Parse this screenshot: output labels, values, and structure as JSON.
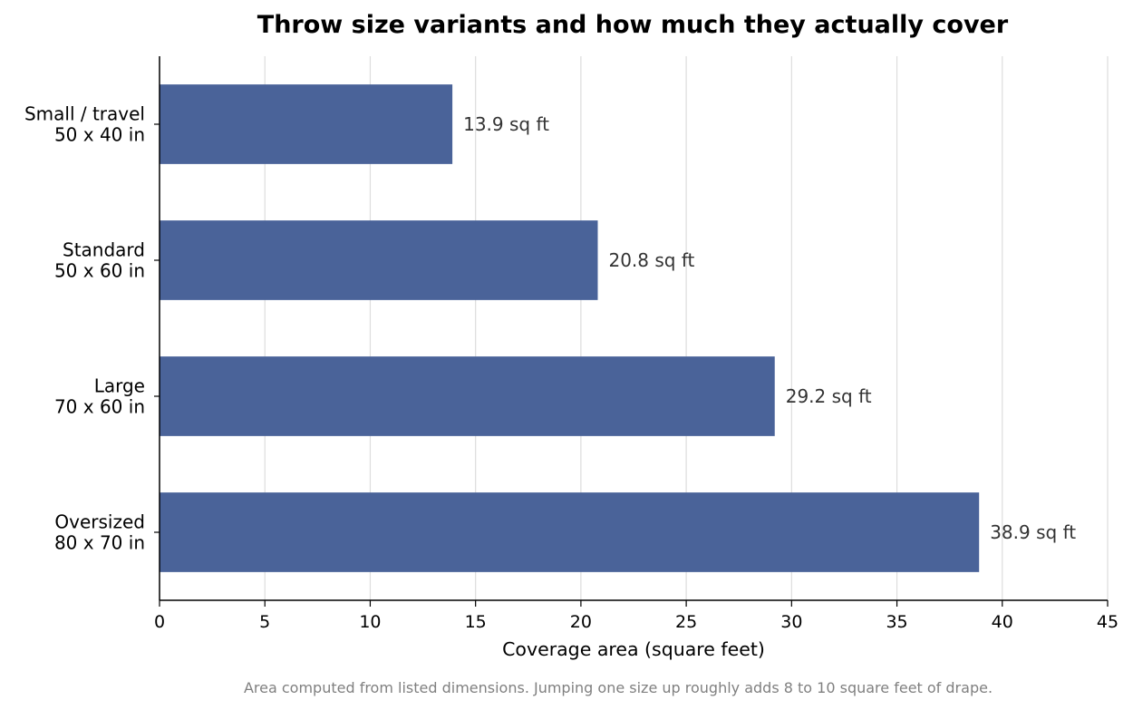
{
  "chart_data": {
    "type": "bar",
    "orientation": "horizontal",
    "title": "Throw size variants and how much they actually cover",
    "xlabel": "Coverage area (square feet)",
    "ylabel": "",
    "xlim": [
      0,
      45
    ],
    "xticks": [
      0,
      5,
      10,
      15,
      20,
      25,
      30,
      35,
      40,
      45
    ],
    "grid": "vertical",
    "categories": [
      [
        "Small / travel",
        "50 x 40 in"
      ],
      [
        "Standard",
        "50 x 60 in"
      ],
      [
        "Large",
        "70 x 60 in"
      ],
      [
        "Oversized",
        "80 x 70 in"
      ]
    ],
    "values": [
      13.9,
      20.8,
      29.2,
      38.9
    ],
    "value_labels": [
      "13.9 sq ft",
      "20.8 sq ft",
      "29.2 sq ft",
      "38.9 sq ft"
    ],
    "bar_color": "#4a6399",
    "grid_color": "#dddddd",
    "footnote": "Area computed from listed dimensions. Jumping one size up roughly adds 8 to 10 square feet of drape."
  }
}
